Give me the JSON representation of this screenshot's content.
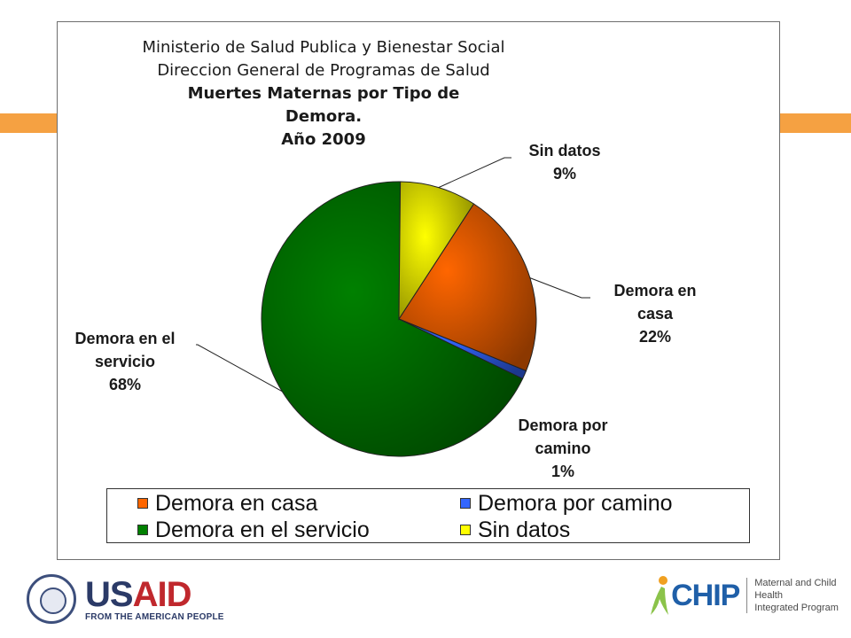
{
  "chart_data": {
    "type": "pie",
    "title_lines": [
      "Ministerio de Salud Publica y Bienestar Social",
      "Direccion General de Programas de Salud"
    ],
    "title_bold_lines": [
      "Muertes Maternas por Tipo de",
      "Demora.",
      "Año 2009"
    ],
    "slices": [
      {
        "name": "Demora en casa",
        "value": 22,
        "label_lines": [
          "Demora en",
          "casa"
        ],
        "pct_label": "22%",
        "color": "#ff6600"
      },
      {
        "name": "Demora por camino",
        "value": 1,
        "label_lines": [
          "Demora por",
          "camino"
        ],
        "pct_label": "1%",
        "color": "#3366ff"
      },
      {
        "name": "Demora en el servicio",
        "value": 68,
        "label_lines": [
          "Demora en el",
          "servicio"
        ],
        "pct_label": "68%",
        "color": "#008000"
      },
      {
        "name": "Sin datos",
        "value": 9,
        "label_lines": [
          "Sin datos"
        ],
        "pct_label": "9%",
        "color": "#ffff00"
      }
    ],
    "legend_placement": "bottom"
  },
  "legend": {
    "items": [
      "Demora en casa",
      "Demora por camino",
      "Demora en el servicio",
      "Sin datos"
    ]
  },
  "footer": {
    "usaid_text": "USAID",
    "usaid_tagline": "FROM THE AMERICAN PEOPLE",
    "chip_text": "CHIP",
    "chip_tagline_1": "Maternal and Child Health",
    "chip_tagline_2": "Integrated Program"
  }
}
